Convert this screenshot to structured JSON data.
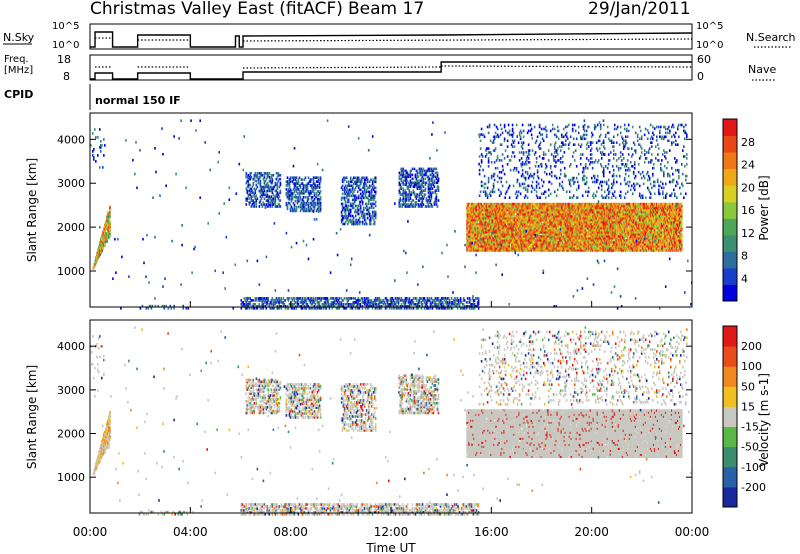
{
  "header": {
    "title": "Christmas Valley East (fitACF)",
    "beam": "Beam 17",
    "date": "29/Jan/2011"
  },
  "strips": {
    "nsky_label": "N.Sky",
    "nsky_ticks": [
      "10^5",
      "10^0"
    ],
    "nsearch_label": "N.Search",
    "nsearch_ticks": [
      "10^5",
      "10^0"
    ],
    "freq_label": "Freq.",
    "freq_unit": "[MHz]",
    "freq_ticks": [
      "18",
      "8"
    ],
    "nave_label": "Nave",
    "nave_ticks": [
      "60",
      "0"
    ],
    "cpid_label": "CPID",
    "cpid_value": "normal 150 IF"
  },
  "chart_data": [
    {
      "type": "heatmap",
      "name": "power",
      "ylabel": "Slant Range [km]",
      "yticks": [
        1000,
        2000,
        3000,
        4000
      ],
      "ylim": [
        180,
        4600
      ],
      "colorbar_label": "Power [dB]",
      "colorbar_ticks": [
        "28",
        "24",
        "20",
        "16",
        "12",
        "8",
        "4"
      ],
      "colors": [
        "#0000e0",
        "#1a3ecc",
        "#2f6e9c",
        "#3c8f70",
        "#4fa85a",
        "#8cc83c",
        "#d8d020",
        "#f0a818",
        "#f07818",
        "#e84818",
        "#e01818"
      ]
    },
    {
      "type": "heatmap",
      "name": "velocity",
      "ylabel": "Slant Range [km]",
      "yticks": [
        1000,
        2000,
        3000,
        4000
      ],
      "ylim": [
        180,
        4600
      ],
      "colorbar_label": "Velocity [m s-1]",
      "colorbar_ticks": [
        "200",
        "100",
        "50",
        "15",
        "-15",
        "-50",
        "-100",
        "-200"
      ],
      "colors": [
        "#1a2a9e",
        "#2a60a8",
        "#3c8c70",
        "#58b848",
        "#c8c8c0",
        "#f0c020",
        "#f08820",
        "#e84c18",
        "#e01818"
      ]
    }
  ],
  "xaxis": {
    "label": "Time UT",
    "ticks": [
      "00:00",
      "04:00",
      "08:00",
      "12:00",
      "16:00",
      "20:00",
      "00:00"
    ]
  }
}
